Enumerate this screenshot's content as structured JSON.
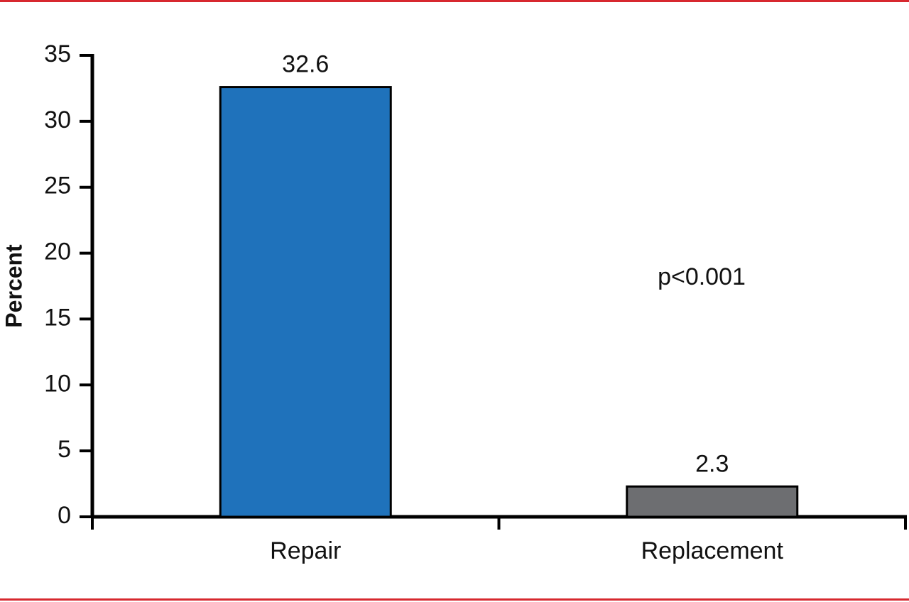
{
  "chart_data": {
    "type": "bar",
    "y_label": "Percent",
    "categories": [
      "Repair",
      "Replacement"
    ],
    "values": [
      32.6,
      2.3
    ],
    "colors": [
      "#1f72bb",
      "#6d6e71"
    ],
    "ylim": [
      0,
      35
    ],
    "yticks": [
      0,
      5,
      10,
      15,
      20,
      25,
      30,
      35
    ],
    "annotation": "p<0.001"
  }
}
